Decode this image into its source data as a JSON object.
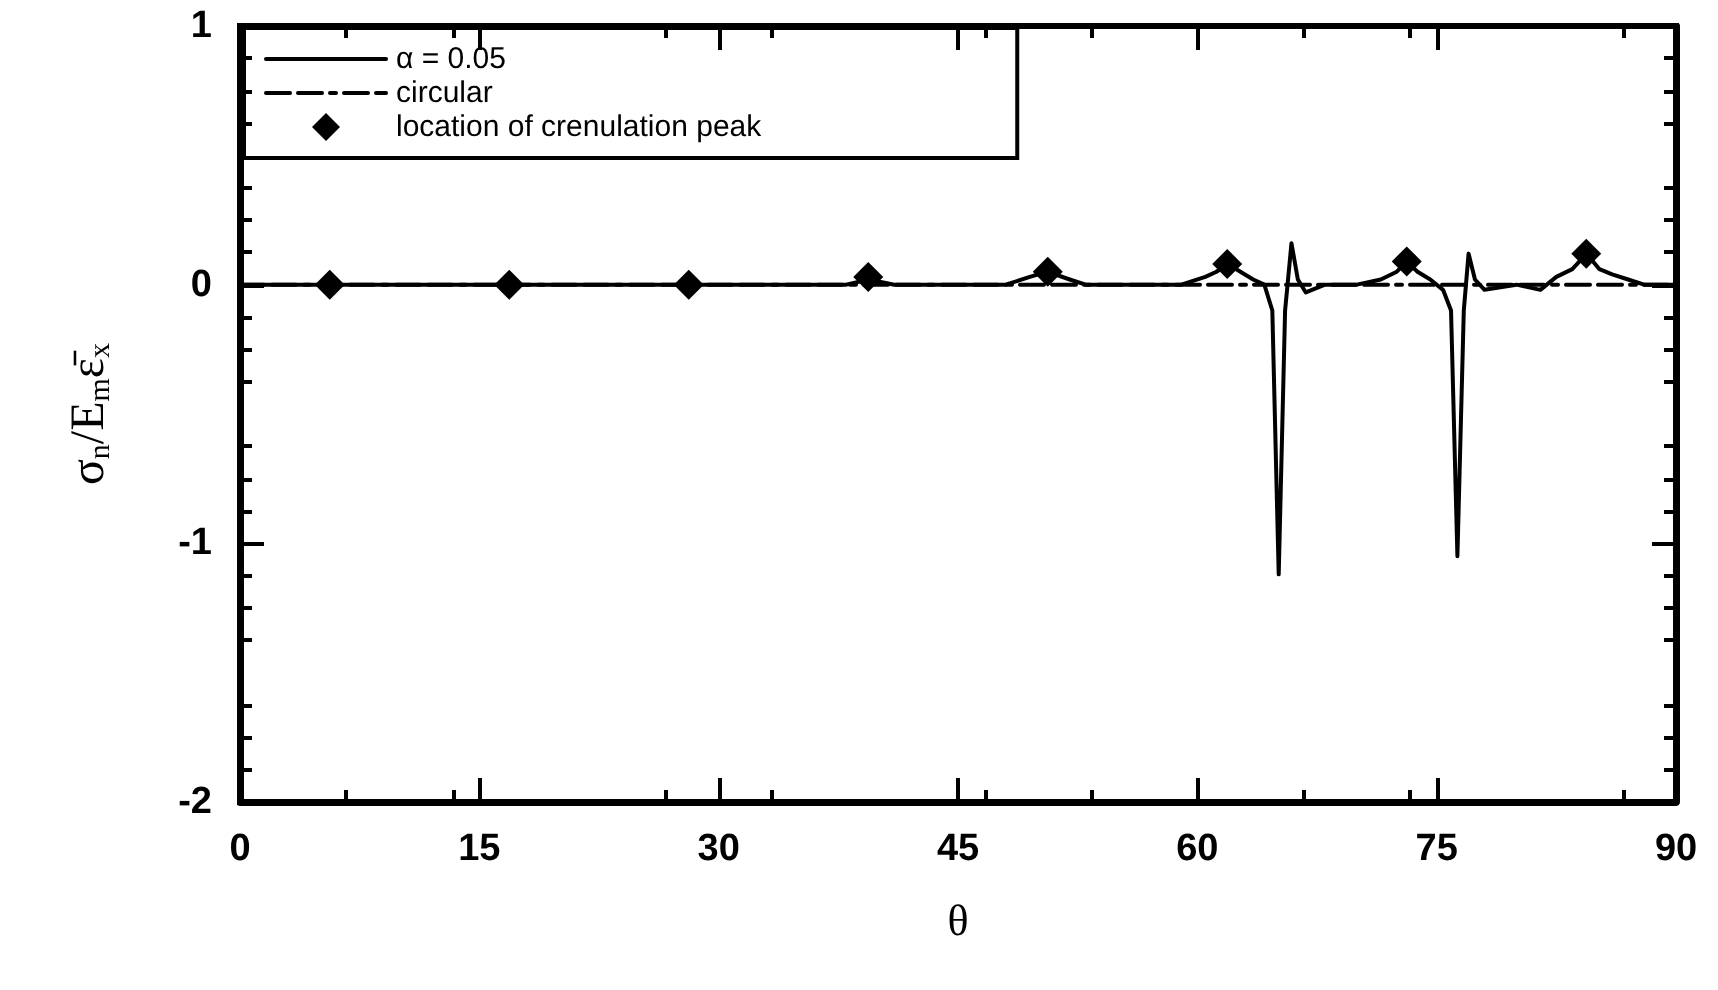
{
  "chart_data": {
    "type": "line",
    "xlabel": "θ",
    "ylabel": "σ$_{n}$/E$_{m}$ε̄$_{x}$",
    "xlim": [
      0,
      90
    ],
    "xticks": [
      0,
      15,
      30,
      45,
      60,
      75,
      90
    ],
    "ylim": [
      -2,
      1
    ],
    "yticks": [
      -2,
      -1,
      0,
      1
    ],
    "grid": false,
    "legend": "top left",
    "marker": "none",
    "series": [
      {
        "name": "α = 0.05",
        "color": "#000000",
        "line_style": "solid",
        "x": [
          0,
          10,
          20,
          30,
          38,
          39.4,
          41,
          48,
          49.5,
          50.6,
          52,
          53,
          59,
          60.5,
          61.2,
          61.9,
          62.7,
          63.5,
          64.2,
          64.7,
          65.1,
          65.5,
          65.9,
          66.3,
          66.8,
          68,
          70,
          71.5,
          72.5,
          73.1,
          73.8,
          74.6,
          75.4,
          75.9,
          76.3,
          76.7,
          77.0,
          77.4,
          78,
          80,
          81.5,
          82.5,
          83.5,
          84.4,
          85.2,
          86,
          87,
          88,
          89,
          90
        ],
        "values": [
          0,
          0,
          0,
          0,
          0,
          0.02,
          0,
          0,
          0.03,
          0.05,
          0.02,
          0,
          0,
          0.03,
          0.05,
          0.08,
          0.05,
          0.02,
          0,
          -0.1,
          -1.12,
          -0.1,
          0.16,
          0.02,
          -0.03,
          0,
          0,
          0.02,
          0.05,
          0.09,
          0.05,
          0.02,
          -0.02,
          -0.1,
          -1.05,
          -0.1,
          0.12,
          0.02,
          -0.02,
          0,
          -0.02,
          0.03,
          0.06,
          0.12,
          0.06,
          0.04,
          0.02,
          0,
          0,
          0
        ]
      },
      {
        "name": "circular",
        "color": "#000000",
        "line_style": "dashed",
        "x": [
          0,
          90
        ],
        "values": [
          0,
          0
        ]
      },
      {
        "name": "location of crenulation peak",
        "type": "scatter",
        "color": "#000000",
        "marker": "diamond",
        "x": [
          5.625,
          16.875,
          28.125,
          39.375,
          50.625,
          61.875,
          73.125,
          84.375
        ],
        "values": [
          0,
          0,
          0,
          0.03,
          0.05,
          0.08,
          0.09,
          0.12
        ]
      }
    ]
  }
}
